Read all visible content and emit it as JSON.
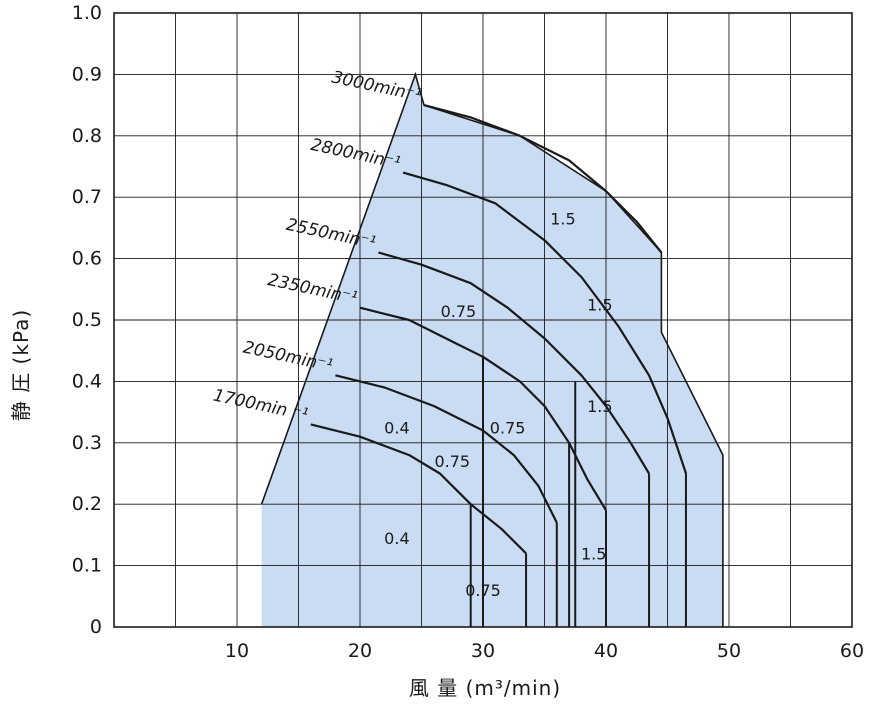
{
  "chart_data": {
    "type": "line",
    "xlabel": "風 量 (m³/min)",
    "ylabel": "静 圧 (kPa)",
    "xlim": [
      0,
      60
    ],
    "ylim": [
      0,
      1.0
    ],
    "x_ticks": [
      10,
      20,
      30,
      40,
      50,
      60
    ],
    "y_ticks": [
      0,
      0.1,
      0.2,
      0.3,
      0.4,
      0.5,
      0.6,
      0.7,
      0.8,
      0.9,
      1.0
    ],
    "y_tick_labels": [
      "0",
      "0.1",
      "0.2",
      "0.3",
      "0.4",
      "0.5",
      "0.6",
      "0.7",
      "0.8",
      "0.9",
      "1.0"
    ],
    "x_tick_labels": [
      "10",
      "20",
      "30",
      "40",
      "50",
      "60"
    ],
    "grid": true,
    "colors": {
      "region_fill": "#c9dcf3",
      "curve": "#1a1a1a",
      "grid": "#1a1a1a"
    },
    "operating_region": {
      "points": [
        [
          12,
          0
        ],
        [
          12,
          0.2
        ],
        [
          24.5,
          0.9
        ],
        [
          25.2,
          0.85
        ],
        [
          33,
          0.8
        ],
        [
          40,
          0.71
        ],
        [
          44.5,
          0.61
        ],
        [
          44.5,
          0.48
        ],
        [
          49.5,
          0.28
        ],
        [
          49.5,
          0
        ]
      ]
    },
    "series": [
      {
        "name": "1700min⁻¹",
        "label": "1700min ⁻¹",
        "points": [
          [
            16,
            0.33
          ],
          [
            20,
            0.31
          ],
          [
            24,
            0.28
          ],
          [
            26.5,
            0.25
          ],
          [
            29,
            0.2
          ],
          [
            31.5,
            0.16
          ],
          [
            33.5,
            0.12
          ]
        ],
        "drops": [
          [
            29,
            0.2
          ],
          [
            33.5,
            0.12
          ]
        ]
      },
      {
        "name": "2050min⁻¹",
        "label": "2050min⁻¹",
        "points": [
          [
            18,
            0.41
          ],
          [
            22,
            0.39
          ],
          [
            26,
            0.36
          ],
          [
            30,
            0.32
          ],
          [
            32.5,
            0.28
          ],
          [
            34.5,
            0.23
          ],
          [
            36,
            0.17
          ]
        ],
        "drops": [
          [
            36,
            0.17
          ]
        ]
      },
      {
        "name": "2350min⁻¹",
        "label": "2350min⁻¹",
        "points": [
          [
            20,
            0.52
          ],
          [
            24,
            0.5
          ],
          [
            28,
            0.46
          ],
          [
            30,
            0.44
          ],
          [
            33,
            0.4
          ],
          [
            35,
            0.36
          ],
          [
            37,
            0.3
          ],
          [
            38.5,
            0.24
          ],
          [
            40,
            0.19
          ]
        ],
        "drops": [
          [
            30,
            0.44
          ],
          [
            37,
            0.3
          ],
          [
            40,
            0.19
          ]
        ]
      },
      {
        "name": "2550min⁻¹",
        "label": "2550min⁻¹",
        "points": [
          [
            21.5,
            0.61
          ],
          [
            25,
            0.59
          ],
          [
            29,
            0.56
          ],
          [
            32,
            0.52
          ],
          [
            35,
            0.47
          ],
          [
            38,
            0.41
          ],
          [
            40,
            0.36
          ],
          [
            42,
            0.3
          ],
          [
            43.5,
            0.25
          ]
        ],
        "drops": [
          [
            37.5,
            0.4
          ],
          [
            43.5,
            0.25
          ]
        ]
      },
      {
        "name": "2800min⁻¹",
        "label": "2800min⁻¹",
        "points": [
          [
            23.5,
            0.74
          ],
          [
            27,
            0.72
          ],
          [
            31,
            0.69
          ],
          [
            35,
            0.63
          ],
          [
            38,
            0.57
          ],
          [
            41,
            0.49
          ],
          [
            43.5,
            0.41
          ],
          [
            45,
            0.34
          ],
          [
            46.5,
            0.25
          ]
        ],
        "drops": [
          [
            46.5,
            0.25
          ]
        ]
      },
      {
        "name": "3000min⁻¹",
        "label": "3000min⁻¹",
        "points": [
          [
            25.2,
            0.85
          ],
          [
            29,
            0.83
          ],
          [
            33,
            0.8
          ],
          [
            37,
            0.76
          ],
          [
            40,
            0.71
          ],
          [
            42.5,
            0.66
          ],
          [
            44.5,
            0.61
          ]
        ],
        "drops": []
      }
    ],
    "region_labels": [
      {
        "text": "1.5",
        "x": 36.5,
        "y": 0.665
      },
      {
        "text": "1.5",
        "x": 39.5,
        "y": 0.525
      },
      {
        "text": "0.75",
        "x": 28,
        "y": 0.515
      },
      {
        "text": "1.5",
        "x": 39.5,
        "y": 0.36
      },
      {
        "text": "0.4",
        "x": 23,
        "y": 0.325
      },
      {
        "text": "0.75",
        "x": 32,
        "y": 0.325
      },
      {
        "text": "0.75",
        "x": 27.5,
        "y": 0.27
      },
      {
        "text": "0.4",
        "x": 23,
        "y": 0.145
      },
      {
        "text": "1.5",
        "x": 39,
        "y": 0.12
      },
      {
        "text": "0.75",
        "x": 30,
        "y": 0.06
      }
    ]
  }
}
